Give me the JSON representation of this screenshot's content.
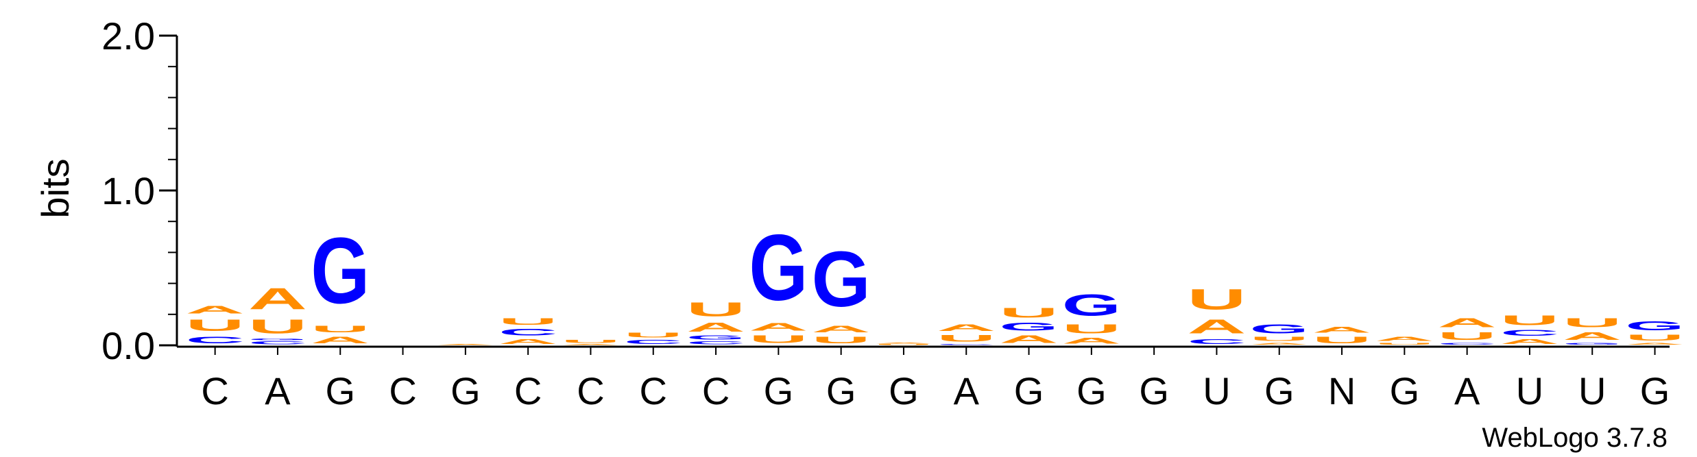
{
  "chart_data": {
    "type": "sequence-logo",
    "ylabel": "bits",
    "ylim": [
      0,
      2.0
    ],
    "y_ticks": [
      "0.0",
      "1.0",
      "2.0"
    ],
    "consensus": [
      "C",
      "A",
      "G",
      "C",
      "G",
      "C",
      "C",
      "C",
      "C",
      "G",
      "G",
      "G",
      "A",
      "G",
      "G",
      "G",
      "U",
      "G",
      "N",
      "G",
      "A",
      "U",
      "U",
      "G"
    ],
    "colors": {
      "A": "#ff8c00",
      "U": "#ff8c00",
      "G": "#0000ff",
      "C": "#0000ff"
    },
    "positions": [
      [
        [
          "C",
          0.07
        ],
        [
          "U",
          0.12
        ],
        [
          "A",
          0.08
        ]
      ],
      [
        [
          "C",
          0.03
        ],
        [
          "G",
          0.02
        ],
        [
          "U",
          0.14
        ],
        [
          "A",
          0.22
        ]
      ],
      [
        [
          "A",
          0.07
        ],
        [
          "U",
          0.07
        ],
        [
          "G",
          0.68
        ]
      ],
      [],
      [
        [
          "A",
          0.01
        ]
      ],
      [
        [
          "A",
          0.05
        ],
        [
          "C",
          0.07
        ],
        [
          "U",
          0.07
        ]
      ],
      [
        [
          "A",
          0.01
        ],
        [
          "U",
          0.03
        ]
      ],
      [
        [
          "C",
          0.04
        ],
        [
          "U",
          0.05
        ]
      ],
      [
        [
          "C",
          0.03
        ],
        [
          "G",
          0.04
        ],
        [
          "A",
          0.09
        ],
        [
          "U",
          0.14
        ]
      ],
      [
        [
          "U",
          0.08
        ],
        [
          "A",
          0.08
        ],
        [
          "G",
          0.68
        ]
      ],
      [
        [
          "U",
          0.07
        ],
        [
          "A",
          0.07
        ],
        [
          "G",
          0.57
        ]
      ],
      [
        [
          "U",
          0.01
        ],
        [
          "A",
          0.01
        ]
      ],
      [
        [
          "C",
          0.01
        ],
        [
          "U",
          0.07
        ],
        [
          "A",
          0.07
        ]
      ],
      [
        [
          "A",
          0.08
        ],
        [
          "G",
          0.08
        ],
        [
          "U",
          0.1
        ]
      ],
      [
        [
          "A",
          0.06
        ],
        [
          "U",
          0.09
        ],
        [
          "G",
          0.22
        ]
      ],
      [],
      [
        [
          "C",
          0.05
        ],
        [
          "A",
          0.14
        ],
        [
          "U",
          0.21
        ]
      ],
      [
        [
          "A",
          0.02
        ],
        [
          "U",
          0.04
        ],
        [
          "G",
          0.09
        ]
      ],
      [
        [
          "U",
          0.07
        ],
        [
          "A",
          0.06
        ]
      ],
      [
        [
          "U",
          0.02
        ],
        [
          "A",
          0.04
        ]
      ],
      [
        [
          "C",
          0.02
        ],
        [
          "U",
          0.08
        ],
        [
          "A",
          0.09
        ]
      ],
      [
        [
          "A",
          0.05
        ],
        [
          "C",
          0.06
        ],
        [
          "U",
          0.1
        ]
      ],
      [
        [
          "G",
          0.02
        ],
        [
          "A",
          0.08
        ],
        [
          "U",
          0.09
        ]
      ],
      [
        [
          "A",
          0.02
        ],
        [
          "U",
          0.06
        ],
        [
          "G",
          0.09
        ]
      ]
    ]
  },
  "watermark": "WebLogo 3.7.8"
}
